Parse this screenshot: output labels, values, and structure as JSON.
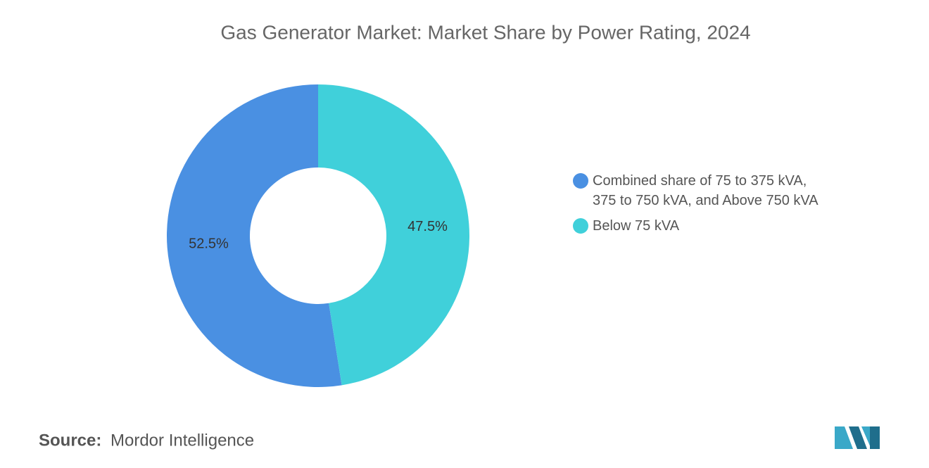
{
  "chart_data": {
    "type": "donut",
    "title": "Gas Generator Market: Market Share by Power Rating, 2024",
    "categories": [
      "Combined share of 75 to 375 kVA, 375 to 750 kVA, and Above 750 kVA",
      "Below 75 kVA"
    ],
    "values": [
      52.5,
      47.5
    ],
    "value_labels": [
      "52.5%",
      "47.5%"
    ],
    "colors": [
      "#4a90e2",
      "#40d0da"
    ],
    "source_label": "Source:",
    "source": "Mordor Intelligence"
  }
}
